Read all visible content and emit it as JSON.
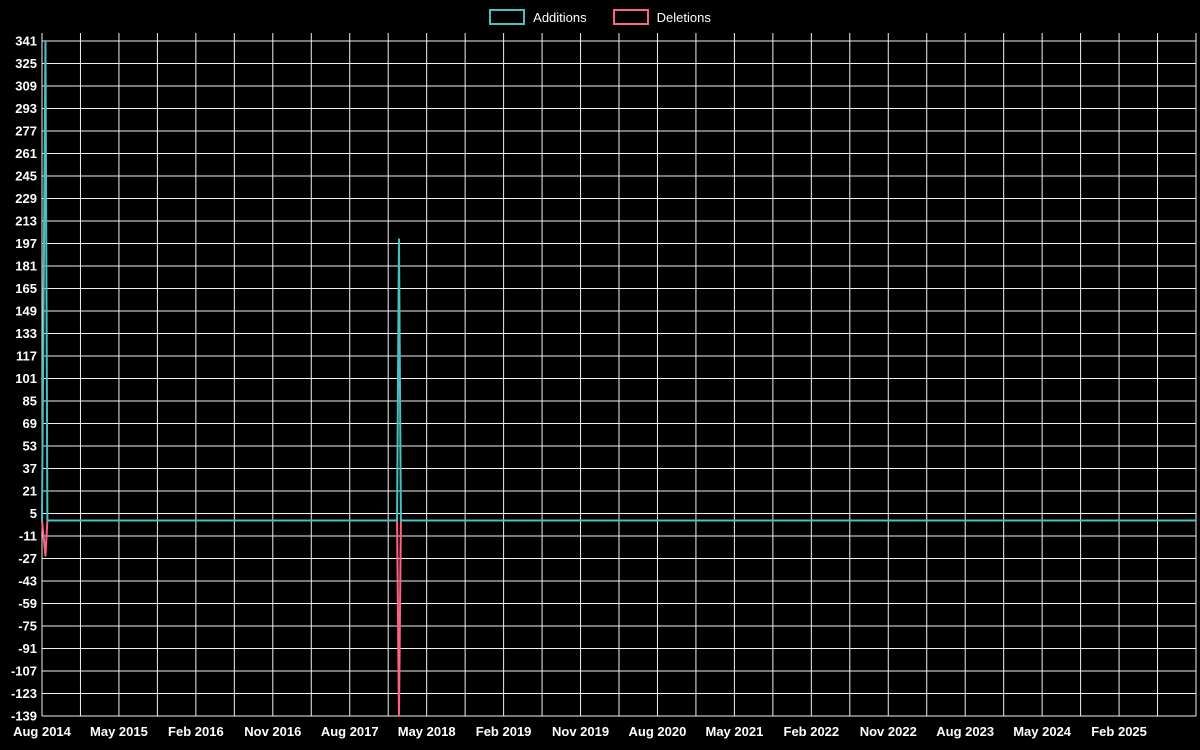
{
  "legend": {
    "items": [
      {
        "label": "Additions",
        "color": "#4bc0c0"
      },
      {
        "label": "Deletions",
        "color": "#ff6384"
      }
    ]
  },
  "chart_data": {
    "type": "line",
    "title": "",
    "xlabel": "",
    "ylabel": "",
    "legend_position": "top",
    "grid": true,
    "ylim": [
      -139,
      341
    ],
    "y_ticks": [
      341,
      325,
      309,
      293,
      277,
      261,
      245,
      229,
      213,
      197,
      181,
      165,
      149,
      133,
      117,
      101,
      85,
      69,
      53,
      37,
      21,
      5,
      -11,
      -27,
      -43,
      -59,
      -75,
      -91,
      -107,
      -123,
      -139
    ],
    "x_tick_labels": [
      "Aug 2014",
      "May 2015",
      "Feb 2016",
      "Nov 2016",
      "Aug 2017",
      "May 2018",
      "Feb 2019",
      "Nov 2019",
      "Aug 2020",
      "May 2021",
      "Feb 2022",
      "Nov 2022",
      "Aug 2023",
      "May 2024",
      "Feb 2025"
    ],
    "x_units": 30,
    "x_label_every": 2,
    "colors": {
      "background": "#000000",
      "grid": "#f0f0f0",
      "text": "#ffffff"
    },
    "series": [
      {
        "name": "Additions",
        "color": "#4bc0c0",
        "width": 2,
        "points": [
          [
            0,
            0
          ],
          [
            0.09,
            341
          ],
          [
            0.14,
            0
          ],
          [
            9.23,
            0
          ],
          [
            9.28,
            200
          ],
          [
            9.33,
            0
          ],
          [
            30,
            0
          ]
        ]
      },
      {
        "name": "Deletions",
        "color": "#ff6384",
        "width": 2,
        "points": [
          [
            0,
            0
          ],
          [
            0.09,
            -25
          ],
          [
            0.14,
            0
          ],
          [
            9.23,
            0
          ],
          [
            9.28,
            -139
          ],
          [
            9.33,
            0
          ],
          [
            30,
            0
          ]
        ]
      }
    ]
  }
}
